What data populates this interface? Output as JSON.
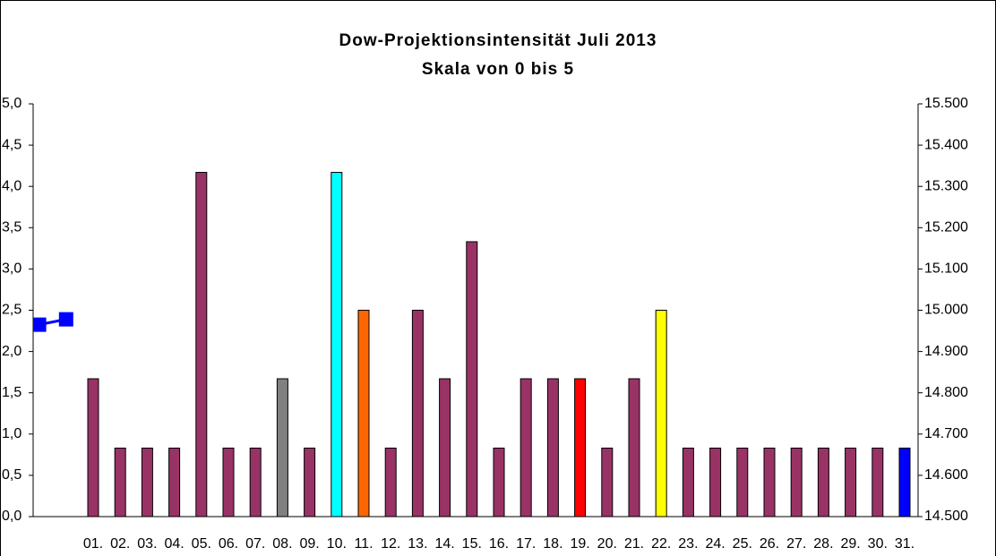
{
  "chart_data": {
    "type": "bar",
    "title": [
      "Dow-Projektionsintensität Juli 2013",
      "Skala von 0 bis 5"
    ],
    "categories": [
      null,
      null,
      "01.",
      "02.",
      "03.",
      "04.",
      "05.",
      "06.",
      "07.",
      "08.",
      "09.",
      "10.",
      "11.",
      "12.",
      "13.",
      "14.",
      "15.",
      "16.",
      "17.",
      "18.",
      "19.",
      "20.",
      "21.",
      "22.",
      "23.",
      "24.",
      "25.",
      "26.",
      "27.",
      "28.",
      "29.",
      "30.",
      "31."
    ],
    "series": [
      {
        "values": [
          null,
          null,
          1.67,
          0.83,
          0.83,
          0.83,
          4.17,
          0.83,
          0.83,
          1.67,
          0.83,
          4.17,
          2.5,
          0.83,
          2.5,
          1.67,
          3.33,
          0.83,
          1.67,
          1.67,
          1.67,
          0.83,
          1.67,
          2.5,
          0.83,
          0.83,
          0.83,
          0.83,
          0.83,
          0.83,
          0.83,
          0.83,
          0.83
        ],
        "colors": [
          null,
          null,
          "#993366",
          "#993366",
          "#993366",
          "#993366",
          "#993366",
          "#993366",
          "#993366",
          "#808080",
          "#993366",
          "#00ffff",
          "#ff6600",
          "#993366",
          "#993366",
          "#993366",
          "#993366",
          "#993366",
          "#993366",
          "#993366",
          "#ff0000",
          "#993366",
          "#993366",
          "#ffff00",
          "#993366",
          "#993366",
          "#993366",
          "#993366",
          "#993366",
          "#993366",
          "#993366",
          "#993366",
          "#0000ff"
        ]
      },
      {
        "type": "line",
        "axis": "y2",
        "color": "#0000ff",
        "values": [
          14965,
          14978,
          null,
          null,
          null,
          null,
          null,
          null,
          null,
          null,
          null,
          null,
          null,
          null,
          null,
          null,
          null,
          null,
          null,
          null,
          null,
          null,
          null,
          null,
          null,
          null,
          null,
          null,
          null,
          null,
          null,
          null,
          null
        ]
      }
    ],
    "ylim": [
      0,
      5
    ],
    "yticks": [
      {
        "value": 0,
        "label": "0,0"
      },
      {
        "value": 0.5,
        "label": "0,5"
      },
      {
        "value": 1,
        "label": "1,0"
      },
      {
        "value": 1.5,
        "label": "1,5"
      },
      {
        "value": 2,
        "label": "2,0"
      },
      {
        "value": 2.5,
        "label": "2,5"
      },
      {
        "value": 3,
        "label": "3,0"
      },
      {
        "value": 3.5,
        "label": "3,5"
      },
      {
        "value": 4,
        "label": "4,0"
      },
      {
        "value": 4.5,
        "label": "4,5"
      },
      {
        "value": 5,
        "label": "5,0"
      }
    ],
    "y2lim": [
      14500,
      15500
    ],
    "y2ticks": [
      {
        "value": 14500,
        "label": "14.500"
      },
      {
        "value": 14600,
        "label": "14.600"
      },
      {
        "value": 14700,
        "label": "14.700"
      },
      {
        "value": 14800,
        "label": "14.800"
      },
      {
        "value": 14900,
        "label": "14.900"
      },
      {
        "value": 15000,
        "label": "15.000"
      },
      {
        "value": 15100,
        "label": "15.100"
      },
      {
        "value": 15200,
        "label": "15.200"
      },
      {
        "value": 15300,
        "label": "15.300"
      },
      {
        "value": 15400,
        "label": "15.400"
      },
      {
        "value": 15500,
        "label": "15.500"
      }
    ],
    "grid": false
  }
}
